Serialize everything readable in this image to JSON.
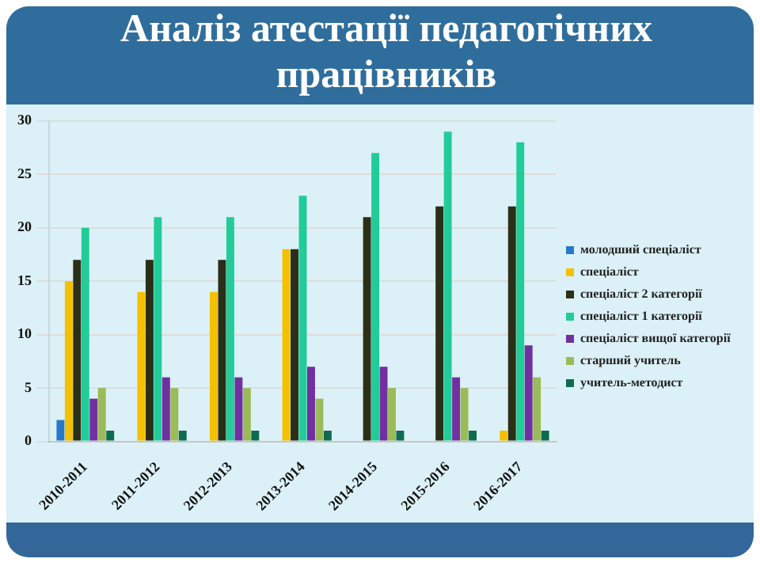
{
  "chart_data": {
    "type": "bar",
    "title": "Аналіз атестації педагогічних працівників",
    "categories": [
      "2010-2011",
      "2011-2012",
      "2012-2013",
      "2013-2014",
      "2014-2015",
      "2015-2016",
      "2016-2017"
    ],
    "series": [
      {
        "name": "молодший спеціаліст",
        "color": "#2878c8",
        "values": [
          2,
          0,
          0,
          0,
          0,
          0,
          0
        ]
      },
      {
        "name": "спеціаліст",
        "color": "#f5c000",
        "values": [
          15,
          14,
          14,
          18,
          0,
          0,
          1
        ]
      },
      {
        "name": "спеціаліст 2 категорії",
        "color": "#2a3018",
        "values": [
          17,
          17,
          17,
          18,
          21,
          22,
          22
        ]
      },
      {
        "name": "спеціаліст 1 категорії",
        "color": "#22cc99",
        "values": [
          20,
          21,
          21,
          23,
          27,
          29,
          28
        ]
      },
      {
        "name": "спеціаліст вищої категорії",
        "color": "#7030a0",
        "values": [
          4,
          6,
          6,
          7,
          7,
          6,
          9
        ]
      },
      {
        "name": "старший учитель",
        "color": "#9bbb59",
        "values": [
          5,
          5,
          5,
          4,
          5,
          5,
          6
        ]
      },
      {
        "name": "учитель-методист",
        "color": "#0f6b50",
        "values": [
          1,
          1,
          1,
          1,
          1,
          1,
          1
        ]
      }
    ],
    "ylim": [
      0,
      30
    ],
    "yticks": [
      0,
      5,
      10,
      15,
      20,
      25,
      30
    ],
    "grid": "y",
    "legend": "right"
  }
}
